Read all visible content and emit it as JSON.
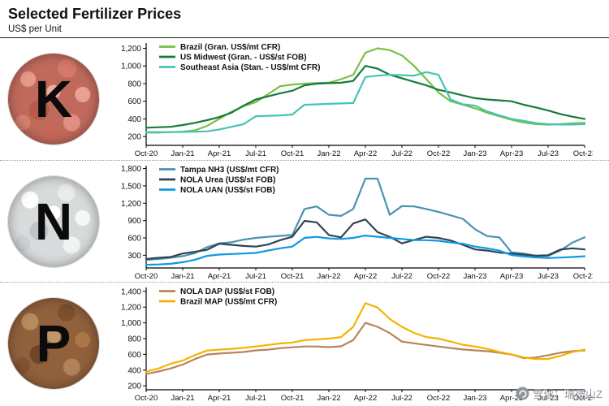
{
  "header": {
    "title": "Selected Fertilizer Prices",
    "subtitle": "US$ per Unit"
  },
  "watermark": {
    "text": "雪球：瑞德山Z"
  },
  "panels": [
    {
      "letter": "K"
    },
    {
      "letter": "N"
    },
    {
      "letter": "P"
    }
  ],
  "colors": {
    "brazil_potash": "#76c043",
    "us_midwest": "#177a3d",
    "southeast_asia": "#45c4b3",
    "tampa_nh3": "#4a93af",
    "nola_urea": "#2f4453",
    "nola_uan": "#0d99e6",
    "nola_dap": "#b8845c",
    "brazil_map": "#f5b301"
  },
  "chart_data": [
    {
      "type": "line",
      "nutrient": "K",
      "ylim": [
        100,
        1260
      ],
      "yticks": [
        200,
        400,
        600,
        800,
        1000,
        1200
      ],
      "x_tick_labels": [
        "Oct-20",
        "Jan-21",
        "Apr-21",
        "Jul-21",
        "Oct-21",
        "Jan-22",
        "Apr-22",
        "Jul-22",
        "Oct-22",
        "Jan-23",
        "Apr-23",
        "Jul-23",
        "Oct-23"
      ],
      "months_per_tick": 3,
      "series": [
        {
          "name": "Brazil (Gran. US$/mt CFR)",
          "color": "#76c043",
          "values": [
            245,
            245,
            250,
            255,
            270,
            320,
            400,
            480,
            545,
            590,
            680,
            770,
            790,
            800,
            805,
            810,
            850,
            900,
            1150,
            1200,
            1180,
            1120,
            1000,
            850,
            700,
            600,
            560,
            520,
            470,
            430,
            390,
            360,
            340,
            335,
            340,
            350,
            355
          ]
        },
        {
          "name": "US Midwest (Gran. - US$/st FOB)",
          "color": "#177a3d",
          "values": [
            300,
            305,
            310,
            330,
            355,
            385,
            420,
            470,
            550,
            620,
            655,
            690,
            720,
            780,
            800,
            805,
            810,
            830,
            1000,
            970,
            900,
            860,
            820,
            780,
            730,
            700,
            665,
            635,
            620,
            610,
            600,
            560,
            530,
            495,
            455,
            425,
            400
          ]
        },
        {
          "name": "Southeast Asia (Stan. - US$/mt CFR)",
          "color": "#45c4b3",
          "values": [
            250,
            250,
            250,
            252,
            255,
            258,
            280,
            310,
            340,
            430,
            435,
            440,
            450,
            560,
            565,
            570,
            575,
            580,
            875,
            890,
            900,
            895,
            890,
            930,
            900,
            620,
            565,
            550,
            485,
            440,
            400,
            378,
            352,
            340,
            336,
            336,
            340
          ]
        }
      ]
    },
    {
      "type": "line",
      "nutrient": "N",
      "ylim": [
        80,
        1850
      ],
      "yticks": [
        300,
        600,
        900,
        1200,
        1500,
        1800
      ],
      "x_tick_labels": [
        "Oct-20",
        "Jan-21",
        "Apr-21",
        "Jul-21",
        "Oct-21",
        "Jan-22",
        "Apr-22",
        "Jul-22",
        "Oct-22",
        "Jan-23",
        "Apr-23",
        "Jul-23",
        "Oct-23"
      ],
      "months_per_tick": 3,
      "series": [
        {
          "name": "Tampa NH3 (US$/mt CFR)",
          "color": "#4a93af",
          "values": [
            220,
            235,
            255,
            285,
            335,
            440,
            505,
            525,
            570,
            600,
            620,
            635,
            650,
            1100,
            1145,
            1000,
            980,
            1100,
            1625,
            1625,
            1000,
            1150,
            1145,
            1100,
            1050,
            990,
            930,
            750,
            630,
            610,
            350,
            330,
            290,
            287,
            380,
            520,
            610
          ]
        },
        {
          "name": "NOLA Urea (US$/st FOB)",
          "color": "#2f4453",
          "values": [
            235,
            255,
            270,
            330,
            360,
            395,
            500,
            480,
            460,
            450,
            485,
            560,
            620,
            895,
            870,
            650,
            610,
            850,
            920,
            700,
            620,
            505,
            565,
            620,
            600,
            555,
            480,
            400,
            380,
            345,
            330,
            310,
            292,
            300,
            398,
            420,
            400
          ]
        },
        {
          "name": "NOLA UAN (US$/st FOB)",
          "color": "#0d99e6",
          "values": [
            135,
            140,
            152,
            180,
            222,
            290,
            312,
            322,
            330,
            340,
            380,
            420,
            450,
            600,
            618,
            592,
            582,
            600,
            640,
            620,
            600,
            582,
            562,
            560,
            550,
            520,
            498,
            450,
            420,
            380,
            302,
            280,
            262,
            252,
            260,
            270,
            282
          ]
        }
      ]
    },
    {
      "type": "line",
      "nutrient": "P",
      "ylim": [
        150,
        1450
      ],
      "yticks": [
        200,
        400,
        600,
        800,
        1000,
        1200,
        1400
      ],
      "x_tick_labels": [
        "Oct-20",
        "Jan-21",
        "Apr-21",
        "Jul-21",
        "Oct-21",
        "Jan-22",
        "Apr-22",
        "Jul-22",
        "Oct-22",
        "Jan-23",
        "Apr-23",
        "Jul-23",
        "Oct-23"
      ],
      "months_per_tick": 3,
      "series": [
        {
          "name": "NOLA DAP (US$/st FOB)",
          "color": "#b8845c",
          "values": [
            350,
            382,
            420,
            470,
            540,
            598,
            610,
            620,
            630,
            650,
            660,
            678,
            690,
            700,
            700,
            692,
            702,
            780,
            1000,
            950,
            870,
            762,
            740,
            720,
            700,
            680,
            662,
            650,
            640,
            620,
            598,
            552,
            560,
            590,
            620,
            640,
            650
          ]
        },
        {
          "name": "Brazil MAP (US$/mt CFR)",
          "color": "#f5b301",
          "values": [
            380,
            420,
            480,
            520,
            590,
            648,
            660,
            670,
            682,
            700,
            720,
            738,
            750,
            780,
            790,
            800,
            820,
            950,
            1250,
            1195,
            1050,
            950,
            872,
            820,
            800,
            762,
            722,
            700,
            670,
            630,
            600,
            562,
            540,
            542,
            580,
            630,
            660
          ]
        }
      ]
    }
  ]
}
